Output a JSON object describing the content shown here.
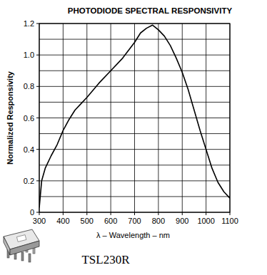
{
  "chart_data": {
    "type": "line",
    "title": "PHOTODIODE SPECTRAL RESPONSIVITY",
    "x_label": "λ – Wavelength – nm",
    "y_label": "Normalized Responsivity",
    "annotations": [
      "TSL230R"
    ],
    "x": [
      300,
      310,
      325,
      350,
      375,
      400,
      425,
      450,
      475,
      500,
      550,
      600,
      650,
      700,
      725,
      750,
      775,
      800,
      825,
      850,
      875,
      900,
      925,
      950,
      975,
      1000,
      1025,
      1050,
      1075,
      1100
    ],
    "values": [
      0.03,
      0.2,
      0.28,
      0.36,
      0.43,
      0.52,
      0.59,
      0.65,
      0.69,
      0.73,
      0.82,
      0.9,
      0.98,
      1.08,
      1.14,
      1.17,
      1.19,
      1.16,
      1.12,
      1.06,
      0.98,
      0.89,
      0.78,
      0.65,
      0.52,
      0.4,
      0.28,
      0.19,
      0.13,
      0.09
    ],
    "color": "#000000",
    "xlim": [
      300,
      1100
    ],
    "xticks": [
      300,
      400,
      500,
      600,
      700,
      800,
      900,
      1000,
      1100
    ],
    "ylim": [
      0,
      1.2
    ],
    "yticks": [
      0,
      0.2,
      0.4,
      0.6,
      0.8,
      {
        "value": 1,
        "label": "1.0"
      },
      1.2
    ],
    "grid": true
  }
}
